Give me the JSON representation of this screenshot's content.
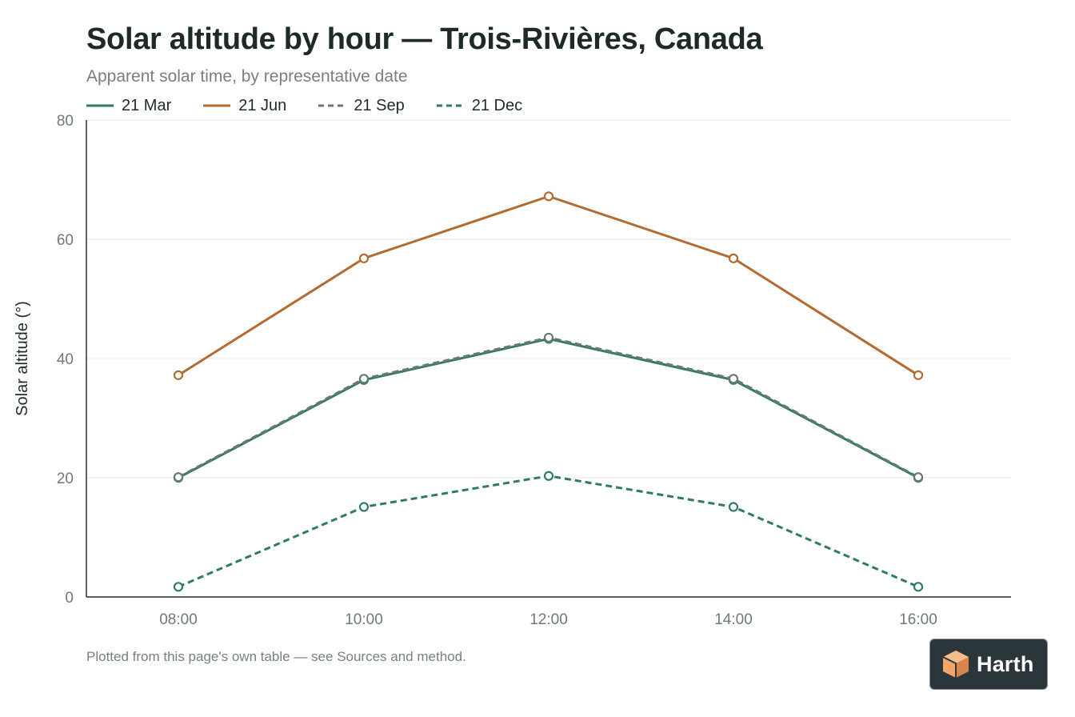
{
  "header": {
    "title": "Solar altitude by hour — Trois-Rivières, Canada",
    "subtitle": "Apparent solar time, by representative date"
  },
  "footnote": "Plotted from this page's own table — see Sources and method.",
  "logo": {
    "text": "Harth",
    "icon": "cube-logo-icon",
    "accent": "#f2a66a",
    "background": "#2b363a"
  },
  "chart_data": {
    "type": "line",
    "title": "Solar altitude by hour — Trois-Rivières, Canada",
    "subtitle": "Apparent solar time, by representative date",
    "xlabel": "",
    "ylabel": "Solar altitude (°)",
    "categories": [
      "08:00",
      "10:00",
      "12:00",
      "14:00",
      "16:00"
    ],
    "ylim": [
      0,
      80
    ],
    "yticks": [
      0,
      20,
      40,
      60,
      80
    ],
    "grid": true,
    "legend_position": "top-left",
    "series": [
      {
        "name": "21 Mar",
        "values": [
          20.0,
          36.4,
          43.3,
          36.4,
          20.0
        ],
        "color": "#2f7a6b",
        "dashed": false,
        "marker_stroke": "#2f7a6b"
      },
      {
        "name": "21 Jun",
        "values": [
          37.2,
          56.8,
          67.2,
          56.8,
          37.2
        ],
        "color": "#b36b32",
        "dashed": true,
        "dashed_override": false,
        "marker_stroke": "#b36b32"
      },
      {
        "name": "21 Sep",
        "values": [
          20.1,
          36.6,
          43.5,
          36.6,
          20.1
        ],
        "color": "#6b7774",
        "dashed": true,
        "marker_stroke": "#6b7774"
      },
      {
        "name": "21 Dec",
        "values": [
          1.7,
          15.1,
          20.3,
          15.1,
          1.7
        ],
        "color": "#2f7a6b",
        "dashed": true,
        "marker_stroke": "#2f7a6b"
      }
    ]
  }
}
